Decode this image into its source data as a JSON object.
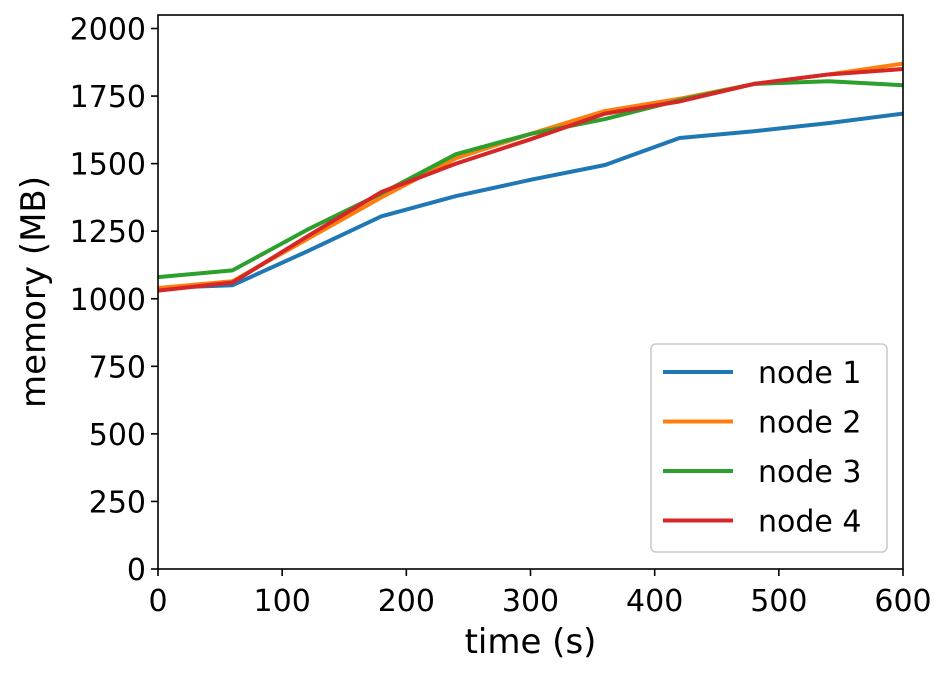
{
  "chart_data": {
    "type": "line",
    "title": "",
    "xlabel": "time (s)",
    "ylabel": "memory (MB)",
    "xlim": [
      0,
      600
    ],
    "ylim": [
      0,
      2050
    ],
    "xticks": [
      0,
      100,
      200,
      300,
      400,
      500,
      600
    ],
    "yticks": [
      0,
      250,
      500,
      750,
      1000,
      1250,
      1500,
      1750,
      2000
    ],
    "grid": false,
    "legend_position": "bottom-right",
    "x": [
      0,
      60,
      120,
      180,
      240,
      300,
      360,
      420,
      480,
      540,
      600
    ],
    "series": [
      {
        "name": "node 1",
        "color": "#1f77b4",
        "values": [
          1040,
          1050,
          1175,
          1305,
          1380,
          1440,
          1495,
          1595,
          1620,
          1650,
          1685
        ]
      },
      {
        "name": "node 2",
        "color": "#ff7f0e",
        "values": [
          1040,
          1065,
          1220,
          1375,
          1520,
          1610,
          1695,
          1740,
          1795,
          1830,
          1870
        ]
      },
      {
        "name": "node 3",
        "color": "#2ca02c",
        "values": [
          1080,
          1105,
          1255,
          1390,
          1535,
          1610,
          1665,
          1735,
          1795,
          1805,
          1790
        ]
      },
      {
        "name": "node 4",
        "color": "#d62728",
        "values": [
          1030,
          1060,
          1230,
          1395,
          1500,
          1590,
          1685,
          1730,
          1795,
          1830,
          1850
        ]
      }
    ]
  }
}
